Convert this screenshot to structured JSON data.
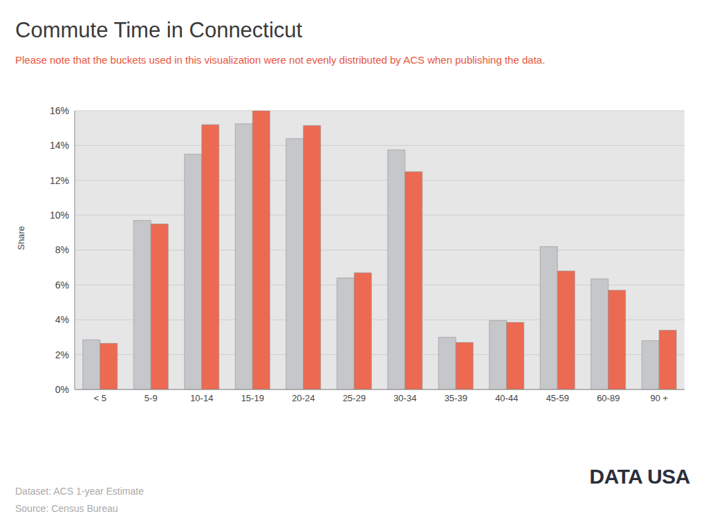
{
  "chart_data": {
    "type": "bar",
    "title": "Commute Time in Connecticut",
    "subtitle": "Please note that the buckets used in this visualization were not evenly distributed by ACS when publishing the data.",
    "y_label": "Share",
    "categories": [
      "< 5",
      "5-9",
      "10-14",
      "15-19",
      "20-24",
      "25-29",
      "30-34",
      "35-39",
      "40-44",
      "45-59",
      "60-89",
      "90 +"
    ],
    "series": [
      {
        "color": "#c6c7cb",
        "values": [
          2.85,
          9.7,
          13.5,
          15.25,
          14.4,
          6.4,
          13.75,
          3.0,
          3.95,
          8.2,
          6.35,
          2.8
        ]
      },
      {
        "color": "#ec6a52",
        "values": [
          2.65,
          9.5,
          15.2,
          16.0,
          15.15,
          6.7,
          12.5,
          2.7,
          3.85,
          6.8,
          5.7,
          3.4
        ]
      }
    ],
    "ylim": [
      0,
      16
    ],
    "yticks": [
      {
        "value": 0,
        "label": "0%"
      },
      {
        "value": 2,
        "label": "2%"
      },
      {
        "value": 4,
        "label": "4%"
      },
      {
        "value": 6,
        "label": "6%"
      },
      {
        "value": 8,
        "label": "8%"
      },
      {
        "value": 10,
        "label": "10%"
      },
      {
        "value": 12,
        "label": "12%"
      },
      {
        "value": 14,
        "label": "14%"
      },
      {
        "value": 16,
        "label": "16%"
      }
    ],
    "grid": true,
    "annotations": [
      "Dataset: ACS 1-year Estimate",
      "Source: Census Bureau",
      "DATA USA"
    ]
  }
}
